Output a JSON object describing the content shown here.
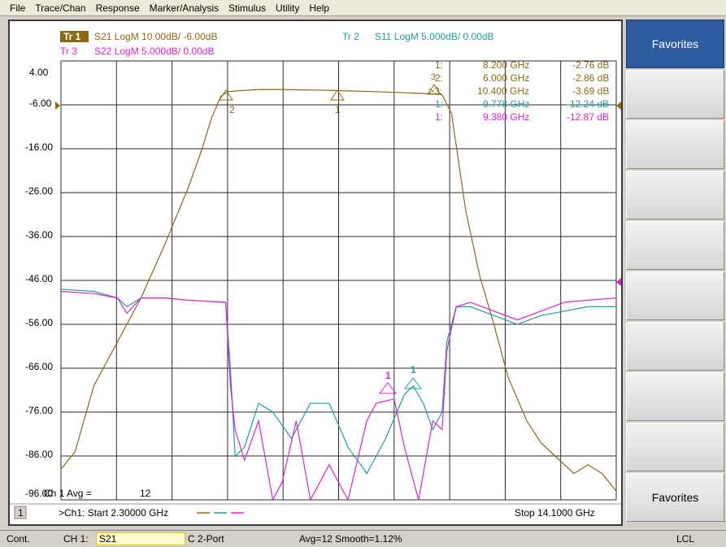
{
  "menu": [
    "File",
    "Trace/Chan",
    "Response",
    "Marker/Analysis",
    "Stimulus",
    "Utility",
    "Help"
  ],
  "traces": {
    "tr1": {
      "label": "Tr 1",
      "text": "S21 LogM 10.00dB/  -6.00dB",
      "color": "#8b6914"
    },
    "tr2": {
      "label": "Tr 2",
      "text": "S11 LogM 5.000dB/  0.00dB",
      "color": "#1f9e9e"
    },
    "tr3": {
      "label": "Tr 3",
      "text": "S22 LogM 5.000dB/  0.00dB",
      "color": "#e020d0"
    }
  },
  "y_ticks": [
    "4.00",
    "-6.00",
    "-16.00",
    "-26.00",
    "-36.00",
    "-46.00",
    "-56.00",
    "-66.00",
    "-76.00",
    "-86.00",
    "-96.00"
  ],
  "marker_table": [
    {
      "id": "1:",
      "freq": "8.200 GHz",
      "val": "-2.76 dB",
      "color": "#8b6914"
    },
    {
      "id": "2:",
      "freq": "6.000 GHz",
      "val": "-2.86 dB",
      "color": "#8b6914"
    },
    {
      "id": ">3:",
      "freq": "10.400 GHz",
      "val": "-3.69 dB",
      "color": "#8b6914"
    },
    {
      "id": "1:",
      "freq": "9.778 GHz",
      "val": "-12.24 dB",
      "color": "#1f9e9e"
    },
    {
      "id": "1:",
      "freq": "9.380 GHz",
      "val": "-12.87 dB",
      "color": "#e020d0"
    }
  ],
  "markers_on_plot": [
    {
      "label": "2",
      "color": "#8b6914"
    },
    {
      "label": "1",
      "color": "#8b6914"
    },
    {
      "label": "3",
      "color": "#8b6914"
    },
    {
      "label": "1",
      "color": "#e020d0"
    },
    {
      "label": "1",
      "color": "#1f9e9e"
    }
  ],
  "avg": {
    "label": "Ch 1 Avg =",
    "value": "12"
  },
  "channel_box": "1",
  "start_text": ">Ch1: Start  2.30000 GHz",
  "stop_text": "Stop  14.1000 GHz",
  "softkeys": {
    "top": "Favorites",
    "bottom": "Favorites"
  },
  "status": {
    "mode": "Cont.",
    "channel": "CH 1:",
    "trace": "S21",
    "port": "C  2-Port",
    "avg": "Avg=12 Smooth=1.12%",
    "lcl": "LCL"
  },
  "chart_data": {
    "type": "line",
    "x_range_ghz": [
      2.3,
      14.1
    ],
    "ylim": [
      -96,
      4
    ],
    "series": [
      {
        "name": "S21",
        "x_ghz": [
          2.3,
          2.6,
          3.0,
          3.5,
          4.0,
          4.5,
          5.0,
          5.3,
          5.5,
          5.7,
          5.85,
          6.0,
          6.5,
          7.0,
          7.5,
          8.2,
          9.0,
          10.0,
          10.4,
          10.6,
          10.9,
          11.2,
          11.5,
          11.8,
          12.2,
          12.5,
          12.8,
          13.0,
          13.2,
          13.5,
          13.8,
          14.1
        ],
        "db": [
          -89,
          -85,
          -70,
          -60,
          -50,
          -38,
          -25,
          -16,
          -9,
          -4,
          -3,
          -2.86,
          -2.5,
          -2.5,
          -2.6,
          -2.76,
          -3.0,
          -3.4,
          -3.69,
          -8,
          -30,
          -45,
          -56,
          -68,
          -78,
          -83,
          -86,
          -88,
          -90,
          -88,
          -90,
          -94
        ]
      },
      {
        "name": "S11",
        "x_ghz": [
          2.3,
          3.0,
          3.5,
          3.7,
          4.0,
          4.5,
          5.0,
          5.8,
          5.9,
          6.0,
          6.2,
          6.5,
          6.8,
          7.2,
          7.6,
          8.0,
          8.4,
          8.8,
          9.2,
          9.6,
          9.78,
          10.0,
          10.2,
          10.4,
          10.5,
          10.7,
          11.0,
          11.5,
          12.0,
          12.5,
          13.0,
          13.5,
          14.1
        ],
        "db": [
          -48,
          -48.5,
          -50,
          -52,
          -50,
          -50,
          -50.5,
          -51,
          -66,
          -86,
          -84,
          -74,
          -76,
          -82,
          -74,
          -74,
          -84,
          -90,
          -82,
          -72,
          -70,
          -74,
          -80,
          -76,
          -60,
          -52,
          -52,
          -54,
          -56,
          -54,
          -53,
          -52,
          -52
        ]
      },
      {
        "name": "S22",
        "x_ghz": [
          2.3,
          3.0,
          3.5,
          3.7,
          4.0,
          4.5,
          5.0,
          5.8,
          5.9,
          6.0,
          6.2,
          6.5,
          6.8,
          7.0,
          7.3,
          7.6,
          8.0,
          8.4,
          8.8,
          9.0,
          9.38,
          9.6,
          9.9,
          10.2,
          10.4,
          10.5,
          10.7,
          11.0,
          11.5,
          12.0,
          12.5,
          13.0,
          13.5,
          14.1
        ],
        "db": [
          -48.5,
          -49,
          -50,
          -53.5,
          -50,
          -50,
          -50.5,
          -51,
          -70,
          -80,
          -87,
          -78,
          -96,
          -92,
          -78,
          -96,
          -88,
          -96,
          -78,
          -74,
          -73,
          -84,
          -96,
          -78,
          -80,
          -62,
          -52,
          -51,
          -53,
          -55,
          -53,
          -51,
          -50.5,
          -50
        ]
      }
    ]
  }
}
